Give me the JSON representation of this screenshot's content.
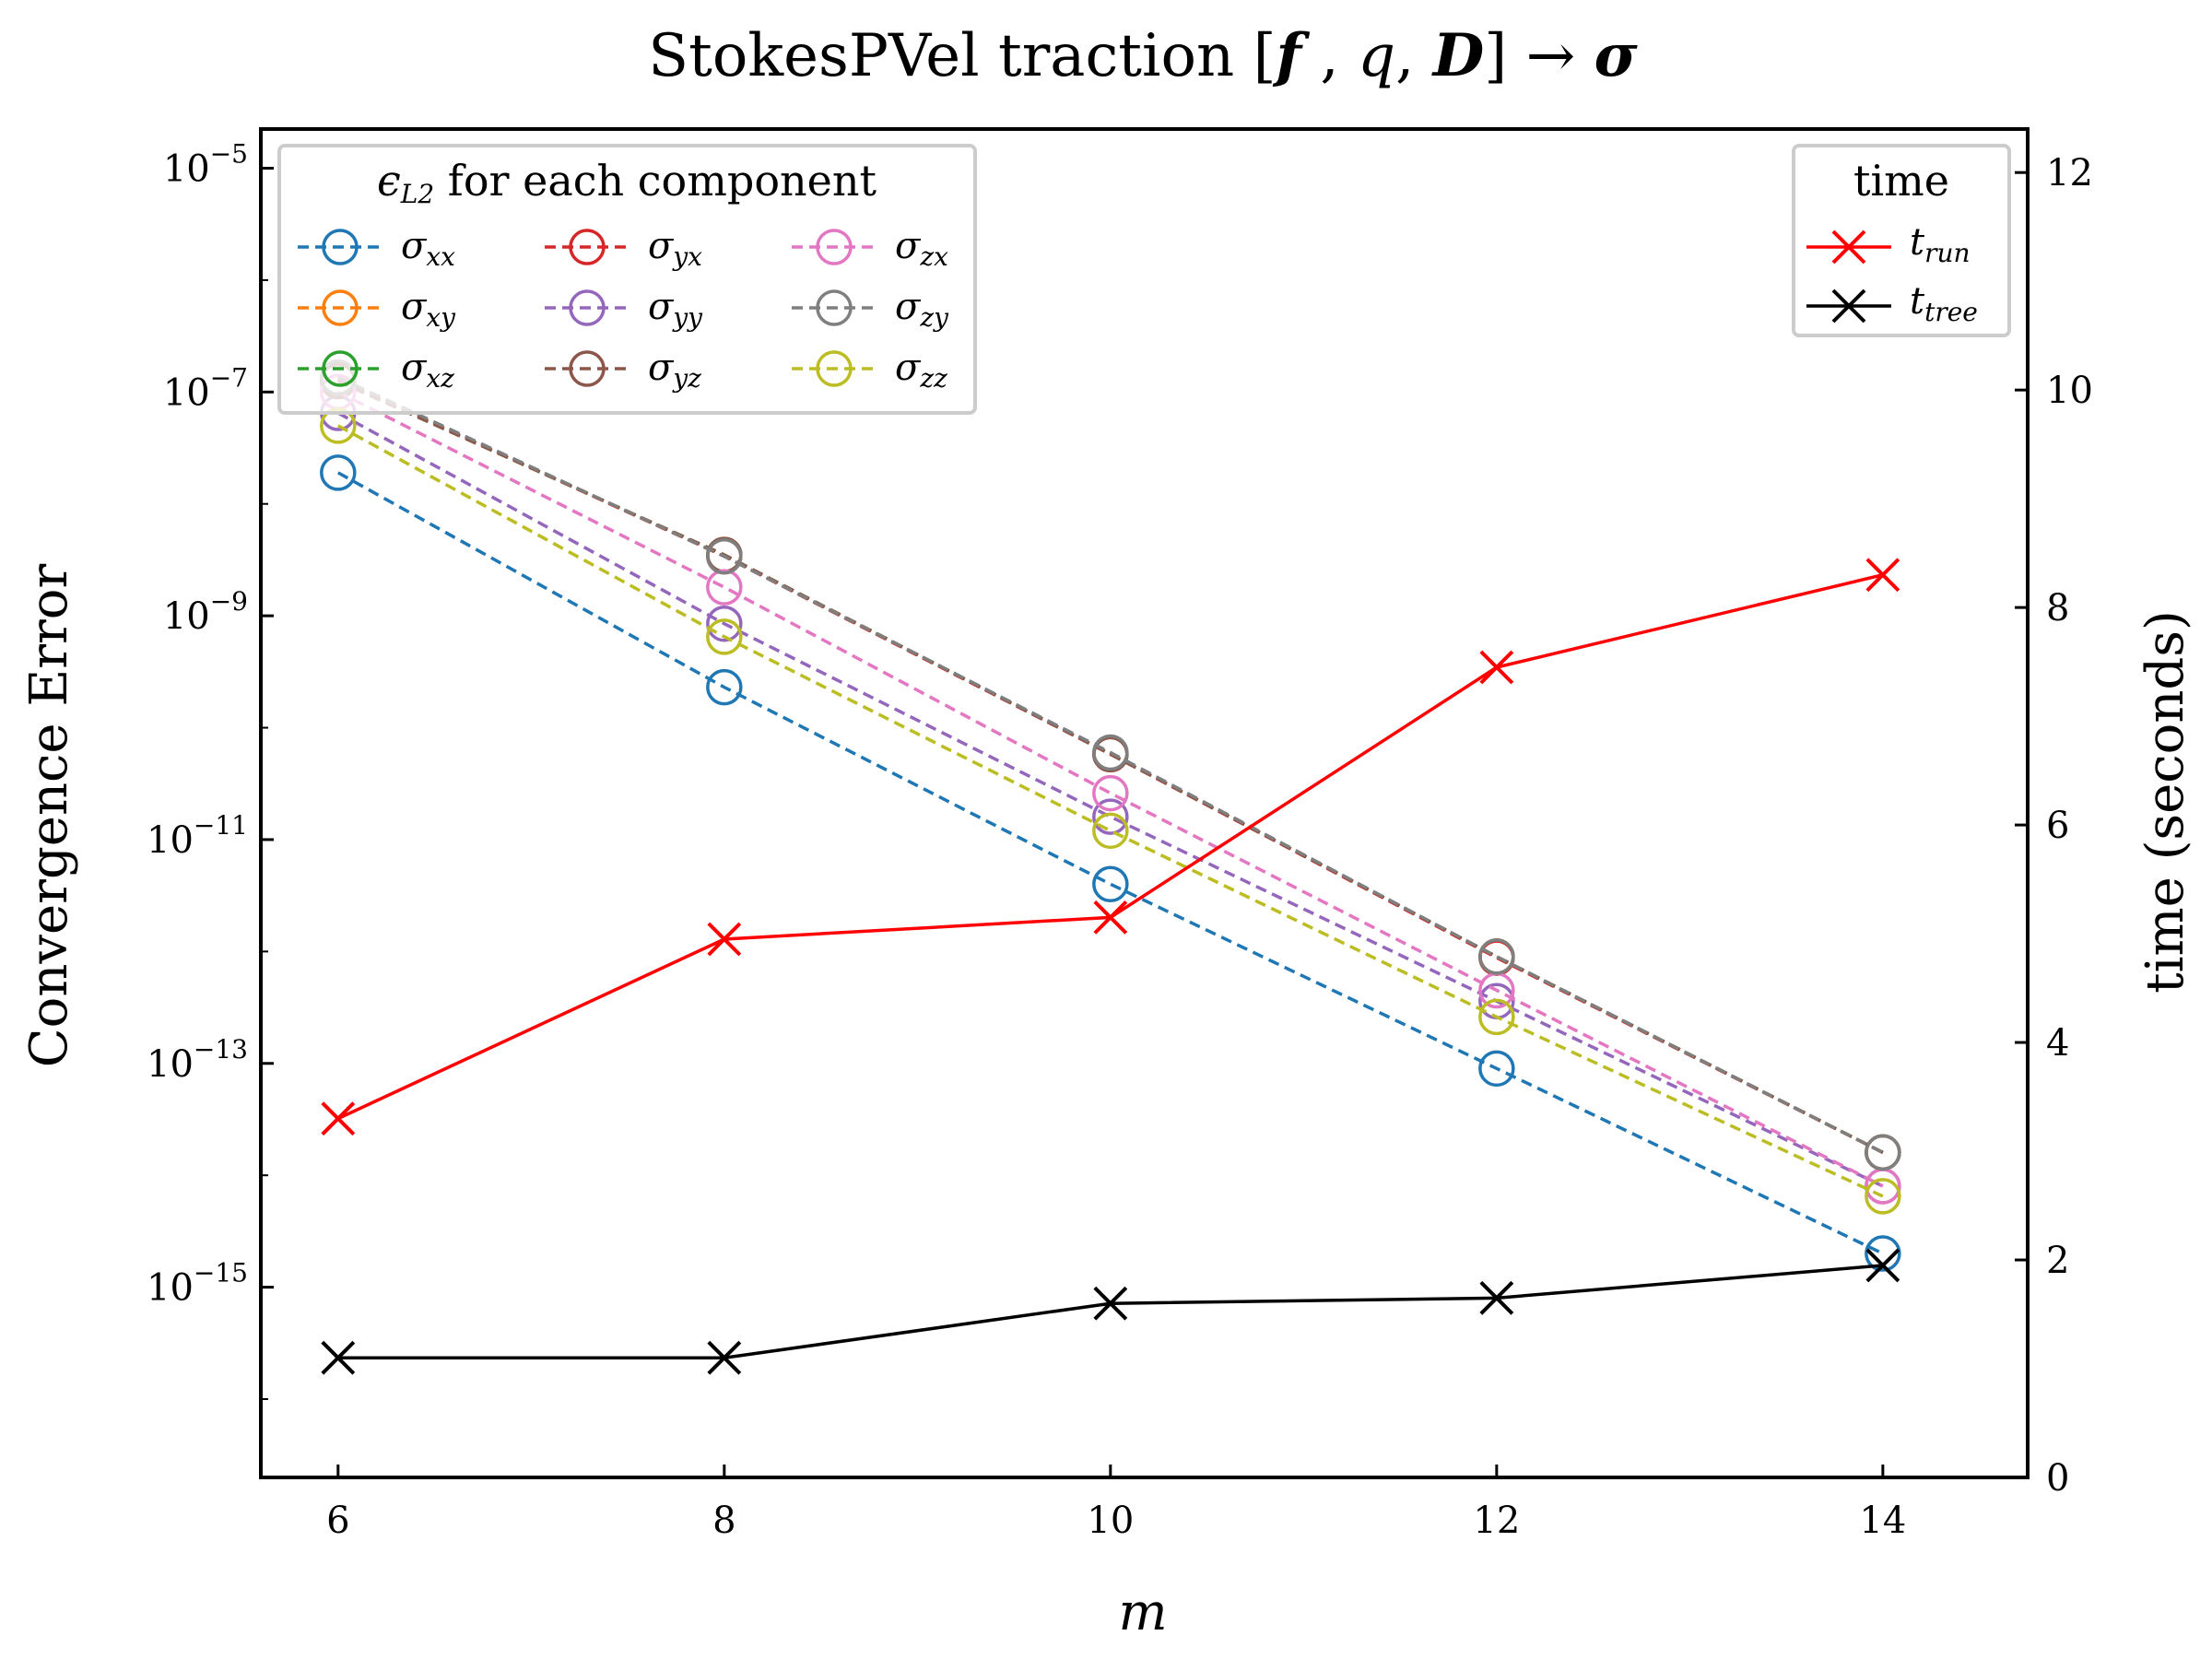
{
  "chart_data": {
    "type": "line",
    "title": {
      "main": "StokesPVel traction [",
      "f": "f",
      "sep1": " , ",
      "q": "q",
      "sep2": ", ",
      "D": "D",
      "arrow": "] → ",
      "sigma": "σ"
    },
    "xlabel": "m",
    "ylabel_left": "Convergence Error",
    "ylabel_right": "time (seconds)",
    "x": [
      6,
      8,
      10,
      12,
      14
    ],
    "x_ticks": [
      6,
      8,
      10,
      12,
      14
    ],
    "xlim": [
      5.6,
      14.75
    ],
    "left_axis": {
      "scale": "log",
      "ylim_exp": [
        -16.7,
        -4.65
      ],
      "tick_exponents": [
        -5,
        -7,
        -9,
        -11,
        -13,
        -15
      ],
      "tick_base": "10",
      "tick_exponent_labels": [
        "−5",
        "−7",
        "−9",
        "−11",
        "−13",
        "−15"
      ]
    },
    "right_axis": {
      "scale": "linear",
      "ylim": [
        0,
        12.4
      ],
      "ticks": [
        0,
        2,
        4,
        6,
        8,
        10,
        12
      ]
    },
    "error_legend": {
      "title_prefix": "ϵ",
      "title_sub": "L2",
      "title_suffix": " for each component",
      "location": "upper-left"
    },
    "time_legend": {
      "title": "time",
      "location": "upper-right"
    },
    "error_series": [
      {
        "sym": "σ",
        "sub": "xx",
        "color": "#1f77b4",
        "values": [
          1.9e-08,
          2.3e-10,
          4e-12,
          9e-14,
          2e-15
        ]
      },
      {
        "sym": "σ",
        "sub": "xy",
        "color": "#ff7f0e",
        "values": [
          1.25e-07,
          3.5e-09,
          5.8e-11,
          9e-13,
          1.6e-14
        ]
      },
      {
        "sym": "σ",
        "sub": "xz",
        "color": "#2ca02c",
        "values": [
          1.25e-07,
          3.5e-09,
          5.8e-11,
          9e-13,
          1.6e-14
        ]
      },
      {
        "sym": "σ",
        "sub": "yx",
        "color": "#d62728",
        "values": [
          1.3e-07,
          3.4e-09,
          5.8e-11,
          8.8e-13,
          1.6e-14
        ]
      },
      {
        "sym": "σ",
        "sub": "yy",
        "color": "#9467bd",
        "values": [
          6.5e-08,
          8.5e-10,
          1.6e-11,
          3.6e-13,
          8e-15
        ]
      },
      {
        "sym": "σ",
        "sub": "yz",
        "color": "#8c564b",
        "values": [
          1.25e-07,
          3.5e-09,
          5.8e-11,
          9e-13,
          1.6e-14
        ]
      },
      {
        "sym": "σ",
        "sub": "zx",
        "color": "#e377c2",
        "values": [
          1e-07,
          1.8e-09,
          2.6e-11,
          4.5e-13,
          8e-15
        ]
      },
      {
        "sym": "σ",
        "sub": "zy",
        "color": "#7f7f7f",
        "values": [
          1.35e-07,
          3.4e-09,
          6e-11,
          9e-13,
          1.6e-14
        ]
      },
      {
        "sym": "σ",
        "sub": "zz",
        "color": "#bcbd22",
        "values": [
          5e-08,
          6.5e-10,
          1.2e-11,
          2.6e-13,
          6.5e-15
        ]
      }
    ],
    "time_series": [
      {
        "sym": "t",
        "sub": "run",
        "color": "#ff0000",
        "values": [
          3.3,
          4.95,
          5.15,
          7.45,
          8.3
        ]
      },
      {
        "sym": "t",
        "sub": "tree",
        "color": "#000000",
        "values": [
          1.1,
          1.1,
          1.6,
          1.65,
          1.95
        ]
      }
    ]
  }
}
